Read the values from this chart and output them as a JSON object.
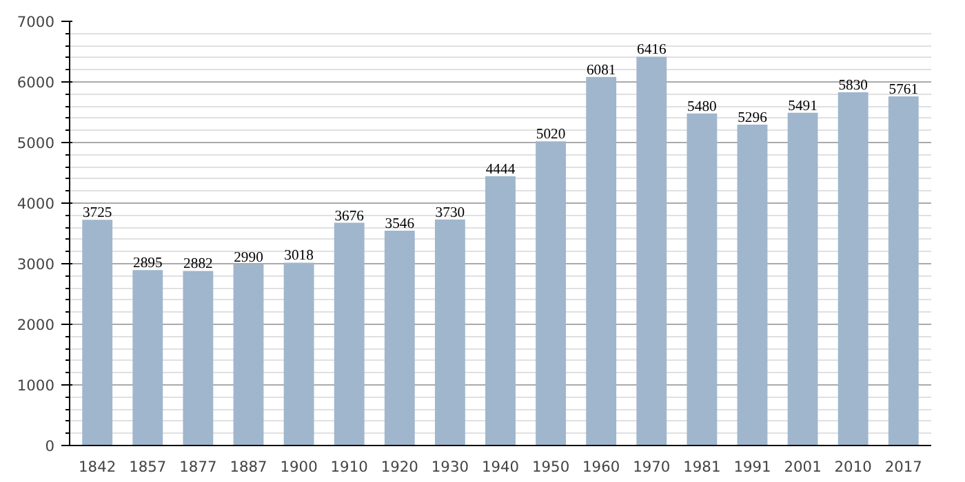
{
  "chart_data": {
    "type": "bar",
    "categories": [
      "1842",
      "1857",
      "1877",
      "1887",
      "1900",
      "1910",
      "1920",
      "1930",
      "1940",
      "1950",
      "1960",
      "1970",
      "1981",
      "1991",
      "2001",
      "2010",
      "2017"
    ],
    "values": [
      3725,
      2895,
      2882,
      2990,
      3018,
      3676,
      3546,
      3730,
      4444,
      5020,
      6081,
      6416,
      5480,
      5296,
      5491,
      5830,
      5761
    ],
    "color": "#9fb6cd",
    "data_labels": true,
    "ylim": [
      0,
      7000
    ],
    "yticks": [
      0,
      1000,
      2000,
      3000,
      4000,
      5000,
      6000,
      7000
    ],
    "grid": "y"
  }
}
